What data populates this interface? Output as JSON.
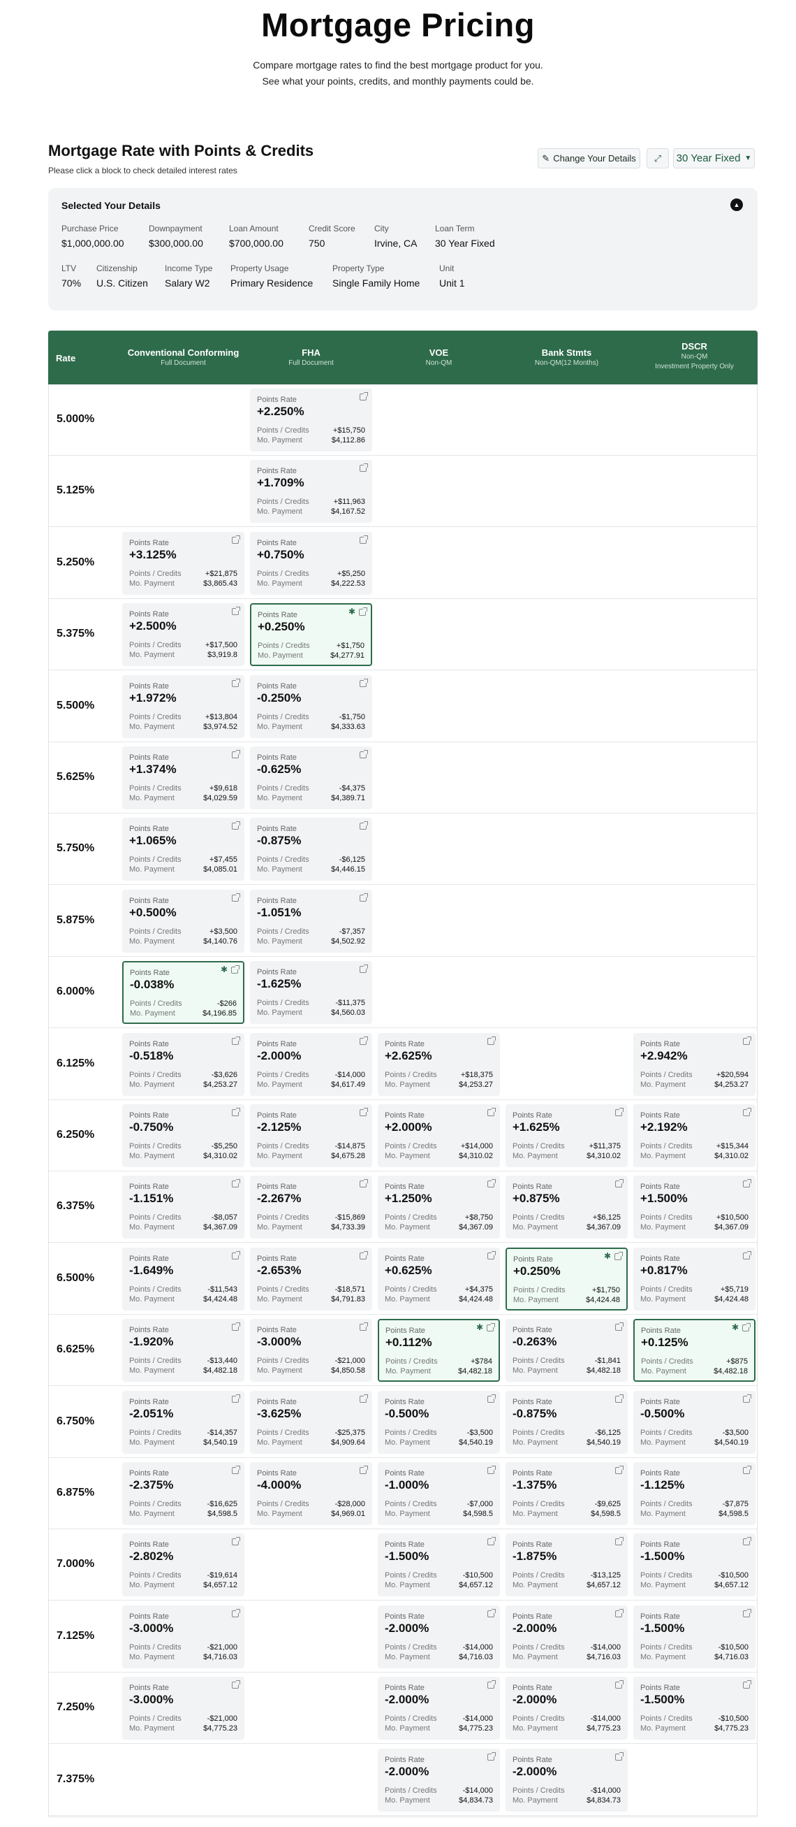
{
  "header": {
    "title": "Mortgage Pricing",
    "subtitle_line1": "Compare mortgage rates to find the best mortgage product for you.",
    "subtitle_line2": "See what your points, credits, and monthly payments could be."
  },
  "section": {
    "title": "Mortgage Rate with Points & Credits",
    "hint": "Please click a block to check detailed interest rates"
  },
  "toolbar": {
    "change_label": "Change Your Details",
    "term_label": "30 Year Fixed"
  },
  "details": {
    "title": "Selected Your Details",
    "items": [
      {
        "label": "Purchase Price",
        "value": "$1,000,000.00"
      },
      {
        "label": "Downpayment",
        "value": "$300,000.00"
      },
      {
        "label": "Loan Amount",
        "value": "$700,000.00"
      },
      {
        "label": "Credit Score",
        "value": "750"
      },
      {
        "label": "City",
        "value": "Irvine, CA"
      },
      {
        "label": "Loan Term",
        "value": "30 Year Fixed"
      },
      {
        "label": "LTV",
        "value": "70%"
      },
      {
        "label": "Citizenship",
        "value": "U.S. Citizen"
      },
      {
        "label": "Income Type",
        "value": "Salary W2"
      },
      {
        "label": "Property Usage",
        "value": "Primary Residence"
      },
      {
        "label": "Property Type",
        "value": "Single Family Home"
      },
      {
        "label": "Unit",
        "value": "Unit 1"
      }
    ]
  },
  "table": {
    "rate_header": "Rate",
    "card_labels": {
      "points_rate": "Points Rate",
      "points_credits": "Points / Credits",
      "mo_payment": "Mo. Payment"
    },
    "columns": [
      {
        "name": "Conventional Conforming",
        "sub": "Full Document"
      },
      {
        "name": "FHA",
        "sub": "Full Document"
      },
      {
        "name": "VOE",
        "sub": "Non-QM"
      },
      {
        "name": "Bank Stmts",
        "sub": "Non-QM(12 Months)"
      },
      {
        "name": "DSCR",
        "sub": "Non-QM\nInvestment Property Only"
      }
    ],
    "rows": [
      {
        "rate": "5.000%",
        "cells": [
          null,
          {
            "pr": "+2.250%",
            "pc": "+$15,750",
            "mp": "$4,112.86"
          },
          null,
          null,
          null
        ]
      },
      {
        "rate": "5.125%",
        "cells": [
          null,
          {
            "pr": "+1.709%",
            "pc": "+$11,963",
            "mp": "$4,167.52"
          },
          null,
          null,
          null
        ]
      },
      {
        "rate": "5.250%",
        "cells": [
          {
            "pr": "+3.125%",
            "pc": "+$21,875",
            "mp": "$3,865.43"
          },
          {
            "pr": "+0.750%",
            "pc": "+$5,250",
            "mp": "$4,222.53"
          },
          null,
          null,
          null
        ]
      },
      {
        "rate": "5.375%",
        "cells": [
          {
            "pr": "+2.500%",
            "pc": "+$17,500",
            "mp": "$3,919.8"
          },
          {
            "pr": "+0.250%",
            "pc": "+$1,750",
            "mp": "$4,277.91",
            "best": true
          },
          null,
          null,
          null
        ]
      },
      {
        "rate": "5.500%",
        "cells": [
          {
            "pr": "+1.972%",
            "pc": "+$13,804",
            "mp": "$3,974.52"
          },
          {
            "pr": "-0.250%",
            "pc": "-$1,750",
            "mp": "$4,333.63"
          },
          null,
          null,
          null
        ]
      },
      {
        "rate": "5.625%",
        "cells": [
          {
            "pr": "+1.374%",
            "pc": "+$9,618",
            "mp": "$4,029.59"
          },
          {
            "pr": "-0.625%",
            "pc": "-$4,375",
            "mp": "$4,389.71"
          },
          null,
          null,
          null
        ]
      },
      {
        "rate": "5.750%",
        "cells": [
          {
            "pr": "+1.065%",
            "pc": "+$7,455",
            "mp": "$4,085.01"
          },
          {
            "pr": "-0.875%",
            "pc": "-$6,125",
            "mp": "$4,446.15"
          },
          null,
          null,
          null
        ]
      },
      {
        "rate": "5.875%",
        "cells": [
          {
            "pr": "+0.500%",
            "pc": "+$3,500",
            "mp": "$4,140.76"
          },
          {
            "pr": "-1.051%",
            "pc": "-$7,357",
            "mp": "$4,502.92"
          },
          null,
          null,
          null
        ]
      },
      {
        "rate": "6.000%",
        "cells": [
          {
            "pr": "-0.038%",
            "pc": "-$266",
            "mp": "$4,196.85",
            "best": true
          },
          {
            "pr": "-1.625%",
            "pc": "-$11,375",
            "mp": "$4,560.03"
          },
          null,
          null,
          null
        ]
      },
      {
        "rate": "6.125%",
        "cells": [
          {
            "pr": "-0.518%",
            "pc": "-$3,626",
            "mp": "$4,253.27"
          },
          {
            "pr": "-2.000%",
            "pc": "-$14,000",
            "mp": "$4,617.49"
          },
          {
            "pr": "+2.625%",
            "pc": "+$18,375",
            "mp": "$4,253.27"
          },
          null,
          {
            "pr": "+2.942%",
            "pc": "+$20,594",
            "mp": "$4,253.27"
          }
        ]
      },
      {
        "rate": "6.250%",
        "cells": [
          {
            "pr": "-0.750%",
            "pc": "-$5,250",
            "mp": "$4,310.02"
          },
          {
            "pr": "-2.125%",
            "pc": "-$14,875",
            "mp": "$4,675.28"
          },
          {
            "pr": "+2.000%",
            "pc": "+$14,000",
            "mp": "$4,310.02"
          },
          {
            "pr": "+1.625%",
            "pc": "+$11,375",
            "mp": "$4,310.02"
          },
          {
            "pr": "+2.192%",
            "pc": "+$15,344",
            "mp": "$4,310.02"
          }
        ]
      },
      {
        "rate": "6.375%",
        "cells": [
          {
            "pr": "-1.151%",
            "pc": "-$8,057",
            "mp": "$4,367.09"
          },
          {
            "pr": "-2.267%",
            "pc": "-$15,869",
            "mp": "$4,733.39"
          },
          {
            "pr": "+1.250%",
            "pc": "+$8,750",
            "mp": "$4,367.09"
          },
          {
            "pr": "+0.875%",
            "pc": "+$6,125",
            "mp": "$4,367.09"
          },
          {
            "pr": "+1.500%",
            "pc": "+$10,500",
            "mp": "$4,367.09"
          }
        ]
      },
      {
        "rate": "6.500%",
        "cells": [
          {
            "pr": "-1.649%",
            "pc": "-$11,543",
            "mp": "$4,424.48"
          },
          {
            "pr": "-2.653%",
            "pc": "-$18,571",
            "mp": "$4,791.83"
          },
          {
            "pr": "+0.625%",
            "pc": "+$4,375",
            "mp": "$4,424.48"
          },
          {
            "pr": "+0.250%",
            "pc": "+$1,750",
            "mp": "$4,424.48",
            "best": true
          },
          {
            "pr": "+0.817%",
            "pc": "+$5,719",
            "mp": "$4,424.48"
          }
        ]
      },
      {
        "rate": "6.625%",
        "cells": [
          {
            "pr": "-1.920%",
            "pc": "-$13,440",
            "mp": "$4,482.18"
          },
          {
            "pr": "-3.000%",
            "pc": "-$21,000",
            "mp": "$4,850.58"
          },
          {
            "pr": "+0.112%",
            "pc": "+$784",
            "mp": "$4,482.18",
            "best": true
          },
          {
            "pr": "-0.263%",
            "pc": "-$1,841",
            "mp": "$4,482.18"
          },
          {
            "pr": "+0.125%",
            "pc": "+$875",
            "mp": "$4,482.18",
            "best": true
          }
        ]
      },
      {
        "rate": "6.750%",
        "cells": [
          {
            "pr": "-2.051%",
            "pc": "-$14,357",
            "mp": "$4,540.19"
          },
          {
            "pr": "-3.625%",
            "pc": "-$25,375",
            "mp": "$4,909.64"
          },
          {
            "pr": "-0.500%",
            "pc": "-$3,500",
            "mp": "$4,540.19"
          },
          {
            "pr": "-0.875%",
            "pc": "-$6,125",
            "mp": "$4,540.19"
          },
          {
            "pr": "-0.500%",
            "pc": "-$3,500",
            "mp": "$4,540.19"
          }
        ]
      },
      {
        "rate": "6.875%",
        "cells": [
          {
            "pr": "-2.375%",
            "pc": "-$16,625",
            "mp": "$4,598.5"
          },
          {
            "pr": "-4.000%",
            "pc": "-$28,000",
            "mp": "$4,969.01"
          },
          {
            "pr": "-1.000%",
            "pc": "-$7,000",
            "mp": "$4,598.5"
          },
          {
            "pr": "-1.375%",
            "pc": "-$9,625",
            "mp": "$4,598.5"
          },
          {
            "pr": "-1.125%",
            "pc": "-$7,875",
            "mp": "$4,598.5"
          }
        ]
      },
      {
        "rate": "7.000%",
        "cells": [
          {
            "pr": "-2.802%",
            "pc": "-$19,614",
            "mp": "$4,657.12"
          },
          null,
          {
            "pr": "-1.500%",
            "pc": "-$10,500",
            "mp": "$4,657.12"
          },
          {
            "pr": "-1.875%",
            "pc": "-$13,125",
            "mp": "$4,657.12"
          },
          {
            "pr": "-1.500%",
            "pc": "-$10,500",
            "mp": "$4,657.12"
          }
        ]
      },
      {
        "rate": "7.125%",
        "cells": [
          {
            "pr": "-3.000%",
            "pc": "-$21,000",
            "mp": "$4,716.03"
          },
          null,
          {
            "pr": "-2.000%",
            "pc": "-$14,000",
            "mp": "$4,716.03"
          },
          {
            "pr": "-2.000%",
            "pc": "-$14,000",
            "mp": "$4,716.03"
          },
          {
            "pr": "-1.500%",
            "pc": "-$10,500",
            "mp": "$4,716.03"
          }
        ]
      },
      {
        "rate": "7.250%",
        "cells": [
          {
            "pr": "-3.000%",
            "pc": "-$21,000",
            "mp": "$4,775.23"
          },
          null,
          {
            "pr": "-2.000%",
            "pc": "-$14,000",
            "mp": "$4,775.23"
          },
          {
            "pr": "-2.000%",
            "pc": "-$14,000",
            "mp": "$4,775.23"
          },
          {
            "pr": "-1.500%",
            "pc": "-$10,500",
            "mp": "$4,775.23"
          }
        ]
      },
      {
        "rate": "7.375%",
        "cells": [
          null,
          null,
          {
            "pr": "-2.000%",
            "pc": "-$14,000",
            "mp": "$4,834.73"
          },
          {
            "pr": "-2.000%",
            "pc": "-$14,000",
            "mp": "$4,834.73"
          },
          null
        ]
      }
    ]
  }
}
